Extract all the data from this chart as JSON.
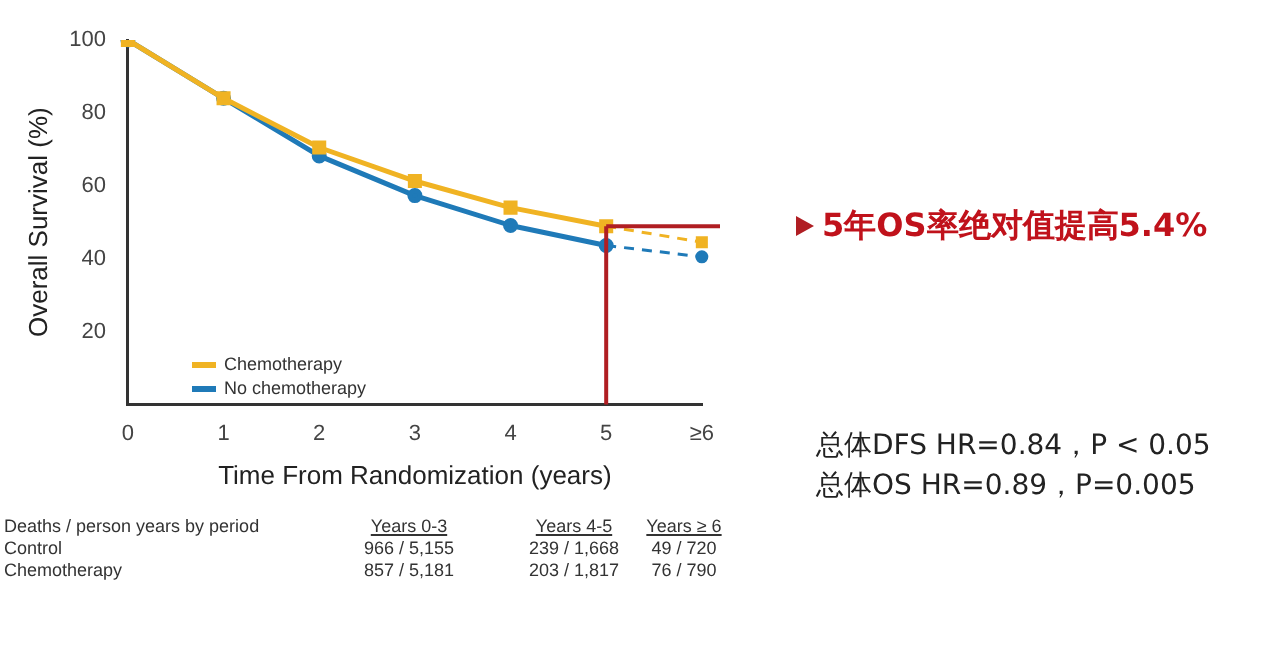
{
  "chart_data": {
    "type": "line",
    "xlabel": "Time From Randomization (years)",
    "ylabel": "Overall Survival (%)",
    "categories": [
      "0",
      "1",
      "2",
      "3",
      "4",
      "5",
      "≥6"
    ],
    "ylim": [
      0,
      100
    ],
    "yticks": [
      20,
      40,
      60,
      80,
      100
    ],
    "grid": false,
    "legend": "bottom left",
    "marker": "circle",
    "series": [
      {
        "name": "Chemotherapy",
        "color": "#f0b323",
        "marker": "square",
        "values": [
          100,
          84,
          70.5,
          61.3,
          54,
          48.9,
          null
        ]
      },
      {
        "name": "No chemotherapy",
        "color": "#1f7ab8",
        "values": [
          100,
          84,
          68.2,
          57.3,
          49.1,
          43.6,
          null
        ]
      },
      {
        "color": "#f0b323",
        "line_style": "dashed",
        "marker": "square",
        "values": [
          null,
          null,
          null,
          null,
          null,
          48.9,
          44.5
        ]
      },
      {
        "color": "#1f7ab8",
        "line_style": "dashed",
        "marker": "circle",
        "values": [
          null,
          null,
          null,
          null,
          null,
          43.6,
          40.5
        ]
      }
    ],
    "ref_lines": [
      {
        "axis": "x",
        "value": "5",
        "color": "#b01e23"
      },
      {
        "axis": "y",
        "value": 48.9,
        "color": "#b01e23"
      }
    ],
    "annotations": [
      "5年OS率绝对值提高5.4%",
      "总体DFS HR=0.84，P < 0.05",
      "总体OS HR=0.89，P=0.005",
      "Deaths / person years by period",
      "Years 0-3",
      "Years 4-5",
      "Years ≥ 6",
      "Control",
      "966 / 5,155",
      "239 / 1,668",
      "49 / 720",
      "Chemotherapy",
      "857 / 5,181",
      "203 / 1,817",
      "76 / 790"
    ]
  }
}
